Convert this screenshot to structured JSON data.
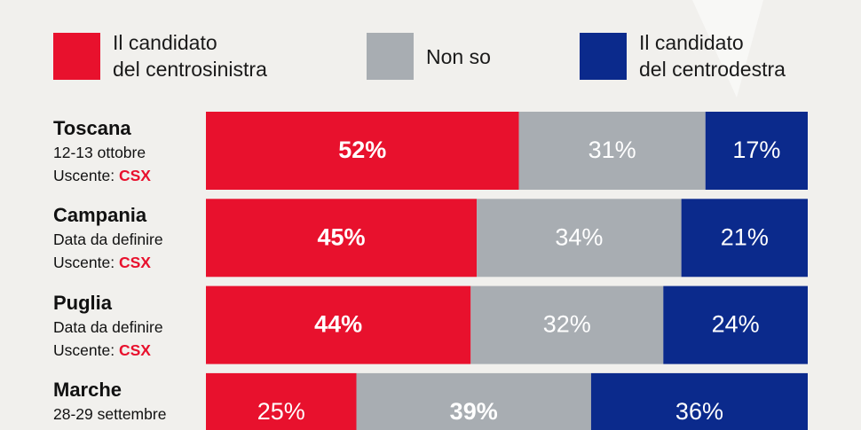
{
  "chart_data": {
    "type": "bar",
    "orientation": "horizontal",
    "stacked": true,
    "categories": [
      "Toscana",
      "Campania",
      "Puglia",
      "Marche"
    ],
    "details": [
      {
        "date": "12-13 ottobre",
        "incumbent": "Uscente:",
        "party": "CSX"
      },
      {
        "date": "Data da definire",
        "incumbent": "Uscente:",
        "party": "CSX"
      },
      {
        "date": "Data da definire",
        "incumbent": "Uscente:",
        "party": "CSX"
      },
      {
        "date": "28-29 settembre"
      }
    ],
    "series": [
      {
        "name": "Il candidato\ndel centrosinistra",
        "color": "#e8112d",
        "text_color": "#ffffff",
        "values": [
          52,
          45,
          44,
          25
        ],
        "value_labels": [
          "52%",
          "45%",
          "44%",
          "25%"
        ]
      },
      {
        "name": "Non so",
        "color": "#a8adb2",
        "text_color": "#ffffff",
        "values": [
          31,
          34,
          32,
          39
        ],
        "value_labels": [
          "31%",
          "34%",
          "32%",
          "39%"
        ]
      },
      {
        "name": "Il candidato\ndel centrodestra",
        "color": "#0b2a8c",
        "text_color": "#ffffff",
        "values": [
          17,
          21,
          24,
          36
        ],
        "value_labels": [
          "17%",
          "21%",
          "24%",
          "36%"
        ]
      }
    ],
    "party_color": "#e8112d"
  }
}
